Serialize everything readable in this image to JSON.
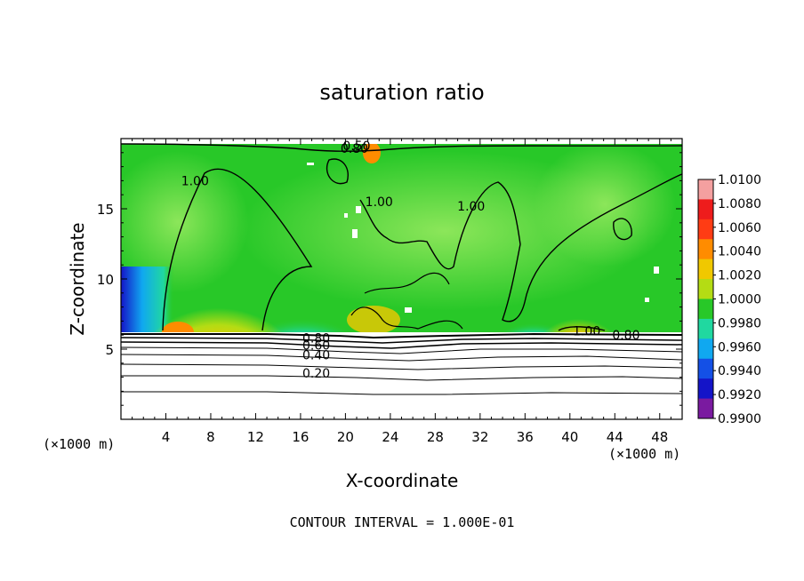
{
  "chart_data": {
    "type": "heatmap",
    "title": "saturation ratio",
    "xlabel": "X-coordinate",
    "ylabel": "Z-coordinate",
    "x_unit_left": "(×1000 m)",
    "x_unit_right": "(×1000 m)",
    "xlim": [
      0,
      50
    ],
    "ylim": [
      0,
      20
    ],
    "xticks": [
      "4",
      "8",
      "12",
      "16",
      "20",
      "24",
      "28",
      "32",
      "36",
      "40",
      "44",
      "48"
    ],
    "xtick_values": [
      4,
      8,
      12,
      16,
      20,
      24,
      28,
      32,
      36,
      40,
      44,
      48
    ],
    "yticks": [
      "5",
      "10",
      "15"
    ],
    "ytick_values": [
      5,
      10,
      15
    ],
    "footer": "CONTOUR INTERVAL = 1.000E-01",
    "colorbar": {
      "labels": [
        "1.0100",
        "1.0080",
        "1.0060",
        "1.0040",
        "1.0020",
        "1.0000",
        "0.9980",
        "0.9960",
        "0.9940",
        "0.9920",
        "0.9900"
      ],
      "colors": [
        "#f4a0a0",
        "#ee1c1c",
        "#ff3c14",
        "#ff8c00",
        "#f0c800",
        "#b4dc14",
        "#28c828",
        "#20d8a0",
        "#10a8f0",
        "#1450e6",
        "#1414c8",
        "#7a1aa0"
      ]
    },
    "contour_labels": [
      {
        "text": "0.50",
        "x": 21.0,
        "y": 19.5
      },
      {
        "text": "0.80",
        "x": 20.8,
        "y": 19.3
      },
      {
        "text": "1.00",
        "x": 6.6,
        "y": 17.0
      },
      {
        "text": "1.00",
        "x": 23.0,
        "y": 15.5
      },
      {
        "text": "1.00",
        "x": 31.2,
        "y": 15.2
      },
      {
        "text": "0.80",
        "x": 17.4,
        "y": 5.8
      },
      {
        "text": "0.60",
        "x": 17.4,
        "y": 5.3
      },
      {
        "text": "0.40",
        "x": 17.4,
        "y": 4.6
      },
      {
        "text": "0.20",
        "x": 17.4,
        "y": 3.3
      },
      {
        "text": "1.00",
        "x": 41.5,
        "y": 6.3
      },
      {
        "text": "0.80",
        "x": 45.0,
        "y": 6.0
      }
    ]
  }
}
